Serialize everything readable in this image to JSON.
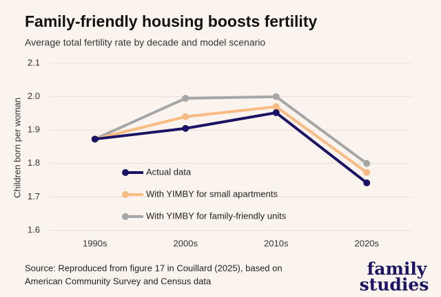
{
  "chart_data": {
    "type": "line",
    "title": "Family-friendly housing boosts fertility",
    "subtitle": "Average total fertility rate by decade and model scenario",
    "y_label": "Children born per woman",
    "categories": [
      "1990s",
      "2000s",
      "2010s",
      "2020s"
    ],
    "series": [
      {
        "name": "Actual data",
        "color": "#1b1464",
        "values": [
          1.873,
          1.905,
          1.952,
          1.742
        ]
      },
      {
        "name": "With YIMBY for small apartments",
        "color": "#f9bb82",
        "values": [
          1.873,
          1.94,
          1.97,
          1.773
        ]
      },
      {
        "name": "With YIMBY for family-friendly units",
        "color": "#a6a6a6",
        "values": [
          1.873,
          1.995,
          2.0,
          1.8
        ]
      }
    ],
    "ylim": [
      1.6,
      2.1
    ],
    "yticks": [
      1.6,
      1.7,
      1.8,
      1.9,
      {
        "value": 2.0,
        "label": "2.0"
      },
      2.1
    ],
    "grid": true,
    "legend": "lower left",
    "source": [
      "Source: Reproduced from figure 17 in Couillard (2025), based on",
      "American Community Survey and Census data"
    ],
    "logo": [
      "family",
      "studies"
    ]
  }
}
